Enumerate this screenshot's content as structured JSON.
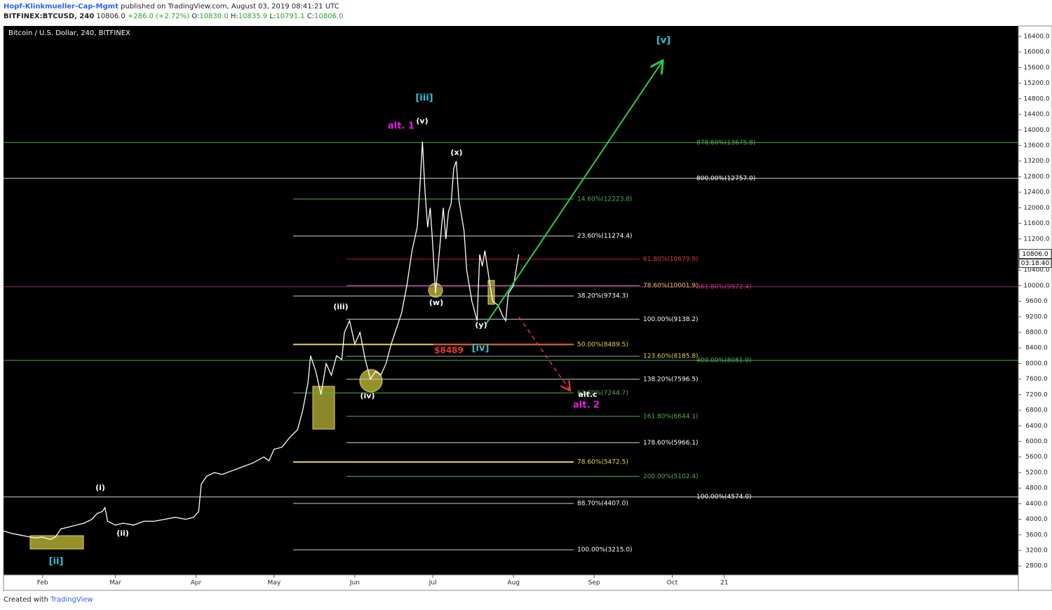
{
  "header": {
    "author": "Hopf-Klinkmueller-Cap-Mgmt",
    "published": "published on TradingView.com, August 03, 2019 08:41:21 UTC",
    "symbol": "BITFINEX:BTCUSD, 240",
    "last": "10806.0",
    "change": "+286.0 (+2.72%)",
    "ohlc": [
      {
        "label": "O:",
        "value": "10830.0"
      },
      {
        "label": "H:",
        "value": "10835.9"
      },
      {
        "label": "L:",
        "value": "10791.1"
      },
      {
        "label": "C:",
        "value": "10806.0"
      }
    ]
  },
  "footer": {
    "created": "Created with",
    "brand": "TradingView"
  },
  "chart_data": {
    "type": "line",
    "title": "Bitcoin / U.S. Dollar, 240, BITFINEX",
    "xlim": [
      0,
      390
    ],
    "ylim": [
      2570,
      16670
    ],
    "xticks": [
      {
        "value": 15,
        "label": "Feb"
      },
      {
        "value": 43,
        "label": "Mar"
      },
      {
        "value": 74,
        "label": "Apr"
      },
      {
        "value": 104,
        "label": "May"
      },
      {
        "value": 135,
        "label": "Jun"
      },
      {
        "value": 165,
        "label": "Jul"
      },
      {
        "value": 196,
        "label": "Aug"
      },
      {
        "value": 227,
        "label": "Sep"
      },
      {
        "value": 257,
        "label": "Oct"
      },
      {
        "value": 277,
        "label": "21"
      }
    ],
    "yticks": [
      {
        "value": 2800,
        "label": "2800.0"
      },
      {
        "value": 3200,
        "label": "3200.0"
      },
      {
        "value": 3600,
        "label": "3600.0"
      },
      {
        "value": 4000,
        "label": "4000.0"
      },
      {
        "value": 4400,
        "label": "4400.0"
      },
      {
        "value": 4800,
        "label": "4800.0"
      },
      {
        "value": 5200,
        "label": "5200.0"
      },
      {
        "value": 5600,
        "label": "5600.0"
      },
      {
        "value": 6000,
        "label": "6000.0"
      },
      {
        "value": 6400,
        "label": "6400.0"
      },
      {
        "value": 6800,
        "label": "6800.0"
      },
      {
        "value": 7200,
        "label": "7200.0"
      },
      {
        "value": 7600,
        "label": "7600.0"
      },
      {
        "value": 8000,
        "label": "8000.0"
      },
      {
        "value": 8400,
        "label": "8400.0"
      },
      {
        "value": 8800,
        "label": "8800.0"
      },
      {
        "value": 9200,
        "label": "9200.0"
      },
      {
        "value": 9600,
        "label": "9600.0"
      },
      {
        "value": 10000,
        "label": "10000.0"
      },
      {
        "value": 10400,
        "label": "10400.0"
      },
      {
        "value": 10800,
        "label": "10800.0"
      },
      {
        "value": 11200,
        "label": "11200.0"
      },
      {
        "value": 11600,
        "label": "11600.0"
      },
      {
        "value": 12000,
        "label": "12000.0"
      },
      {
        "value": 12400,
        "label": "12400.0"
      },
      {
        "value": 12800,
        "label": "12800.0"
      },
      {
        "value": 13200,
        "label": "13200.0"
      },
      {
        "value": 13600,
        "label": "13600.0"
      },
      {
        "value": 14000,
        "label": "14000.0"
      },
      {
        "value": 14400,
        "label": "14400.0"
      },
      {
        "value": 14800,
        "label": "14800.0"
      },
      {
        "value": 15200,
        "label": "15200.0"
      },
      {
        "value": 15600,
        "label": "15600.0"
      },
      {
        "value": 16000,
        "label": "16000.0"
      },
      {
        "value": 16400,
        "label": "16400.0"
      }
    ],
    "series": [
      {
        "color": "#ffffff",
        "x": [
          0,
          3,
          6,
          9,
          12,
          15,
          18,
          20,
          22,
          25,
          28,
          31,
          34,
          36,
          38,
          39,
          40,
          43,
          46,
          50,
          54,
          58,
          62,
          66,
          70,
          73,
          75,
          76,
          78,
          81,
          84,
          88,
          92,
          96,
          100,
          102,
          104,
          107,
          110,
          113,
          115,
          117,
          118,
          120,
          122,
          124,
          126,
          128,
          130,
          131,
          133,
          135,
          137,
          139,
          141,
          143,
          145,
          147,
          149,
          151,
          153,
          155,
          157,
          159,
          160,
          161,
          162,
          163,
          164,
          165,
          166,
          167,
          169,
          170,
          171,
          172,
          173,
          174,
          175,
          177,
          178,
          180,
          182,
          183,
          184,
          185,
          187,
          188,
          190,
          192,
          193,
          194,
          196,
          197,
          198
        ],
        "values": [
          3700,
          3640,
          3600,
          3560,
          3520,
          3540,
          3480,
          3550,
          3750,
          3800,
          3850,
          3900,
          4000,
          4150,
          4200,
          4300,
          3950,
          3850,
          3900,
          3850,
          3950,
          3950,
          4000,
          4050,
          4000,
          4050,
          4200,
          4900,
          5100,
          5200,
          5150,
          5250,
          5350,
          5450,
          5600,
          5500,
          5800,
          5850,
          6100,
          6300,
          6800,
          7500,
          8200,
          7800,
          7200,
          8000,
          7700,
          8200,
          8100,
          8800,
          9100,
          8500,
          8800,
          8100,
          7600,
          7800,
          7700,
          8000,
          8500,
          8900,
          9300,
          10000,
          10900,
          11500,
          12500,
          13700,
          12400,
          11500,
          12000,
          11000,
          9800,
          10500,
          12000,
          11200,
          11900,
          12100,
          13000,
          13200,
          12200,
          11400,
          10400,
          9600,
          9100,
          10800,
          10500,
          10900,
          10000,
          9600,
          9500,
          9200,
          9100,
          9800,
          10000,
          10400,
          10806
        ]
      }
    ],
    "price_tag": {
      "value": 10806,
      "label": "10806.0"
    },
    "countdown": "03:18:40",
    "levels": [
      {
        "value": 13675.8,
        "label": "878.60%(13675.8)",
        "color": "#4caf50",
        "text_color": "#4caf50"
      },
      {
        "value": 12757,
        "label": "800.00%(12757.0)",
        "color": "#d0d0d0",
        "text_color": "#ffffff"
      },
      {
        "value": 12223.8,
        "label": "14.60%(12223.8)",
        "color": "#4caf50",
        "text_color": "#4caf50"
      },
      {
        "value": 11274.4,
        "label": "23.60%(11274.4)",
        "color": "#d0d0d0",
        "text_color": "#ffffff"
      },
      {
        "value": 10679.9,
        "label": "61.80%(10679.9)",
        "color": "#b71c1c",
        "text_color": "#e53935"
      },
      {
        "value": 10001.9,
        "label": "78.60%(10001.9)",
        "color": "#9e9e9e",
        "text_color": "#e6d645"
      },
      {
        "value": 9972.4,
        "label": "561.80%(9972.4)",
        "color": "#9c2a7a",
        "text_color": "#c2357f"
      },
      {
        "value": 9734.3,
        "label": "38.20%(9734.3)",
        "color": "#d0d0d0",
        "text_color": "#ffffff"
      },
      {
        "value": 9138.2,
        "label": "100.00%(9138.2)",
        "color": "#d0d0d0",
        "text_color": "#ffffff"
      },
      {
        "value": 8489.5,
        "label": "50.00%(8489.5)",
        "color": "#e6d645",
        "text_color": "#e6d645"
      },
      {
        "value": 8185.8,
        "label": "123.60%(8185.8)",
        "color": "#9e9e9e",
        "text_color": "#e6d645"
      },
      {
        "value": 8081,
        "label": "400.00%(8081.0)",
        "color": "#4caf50",
        "text_color": "#4caf50"
      },
      {
        "value": 7596.5,
        "label": "138.20%(7596.5)",
        "color": "#d0d0d0",
        "text_color": "#ffffff"
      },
      {
        "value": 7244.7,
        "label": "61.80%(7244.7)",
        "color": "#4caf50",
        "text_color": "#4caf50"
      },
      {
        "value": 6644.1,
        "label": "161.80%(6644.1)",
        "color": "#4caf50",
        "text_color": "#4caf50"
      },
      {
        "value": 5966.1,
        "label": "178.60%(5966.1)",
        "color": "#d0d0d0",
        "text_color": "#ffffff"
      },
      {
        "value": 5472.5,
        "label": "78.60%(5472.5)",
        "color": "#e6d645",
        "text_color": "#e6d645"
      },
      {
        "value": 5102.4,
        "label": "200.00%(5102.4)",
        "color": "#4caf50",
        "text_color": "#4caf50"
      },
      {
        "value": 4574,
        "label": "100.00%(4574.0)",
        "color": "#d0d0d0",
        "text_color": "#ffffff"
      },
      {
        "value": 4407,
        "label": "88.70%(4407.0)",
        "color": "#d0d0d0",
        "text_color": "#ffffff"
      },
      {
        "value": 3215,
        "label": "100.00%(3215.0)",
        "color": "#d0d0d0",
        "text_color": "#ffffff"
      }
    ],
    "annotations": [
      {
        "text": "[v]",
        "color": "#26c6da"
      },
      {
        "text": "[iii]",
        "color": "#26c6da"
      },
      {
        "text": "alt. 1",
        "color": "#e020e0"
      },
      {
        "text": "(v)",
        "color": "#ffffff"
      },
      {
        "text": "(x)",
        "color": "#ffffff"
      },
      {
        "text": "(iii)",
        "color": "#ffffff"
      },
      {
        "text": "(w)",
        "color": "#ffffff"
      },
      {
        "text": "(y)",
        "color": "#ffffff"
      },
      {
        "text": "[iv]",
        "color": "#26c6da"
      },
      {
        "text": "$8489",
        "color": "#e53935"
      },
      {
        "text": "(iv)",
        "color": "#ffffff"
      },
      {
        "text": "alt.c",
        "color": "#ffffff"
      },
      {
        "text": "alt. 2",
        "color": "#e020e0"
      },
      {
        "text": "(i)",
        "color": "#ffffff"
      },
      {
        "text": "(ii)",
        "color": "#ffffff"
      },
      {
        "text": "[ii]",
        "color": "#26c6da"
      }
    ]
  }
}
